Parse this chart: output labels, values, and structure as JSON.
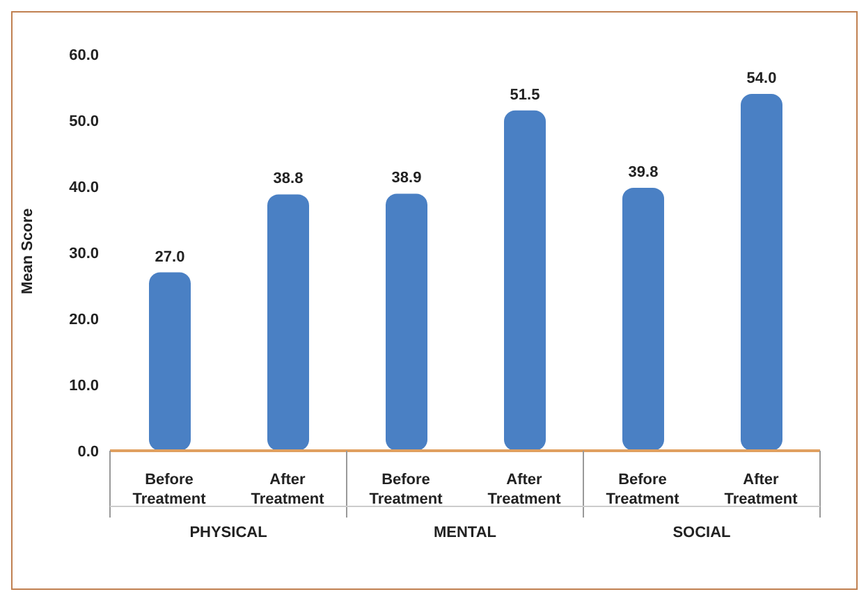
{
  "chart_data": {
    "type": "bar",
    "ylabel": "Mean Score",
    "categories": [
      "Before Treatment",
      "After Treatment",
      "Before Treatment",
      "After Treatment",
      "Before Treatment",
      "After Treatment"
    ],
    "values": [
      27.0,
      38.8,
      38.9,
      51.5,
      39.8,
      54.0
    ],
    "color": "#4a80c4",
    "ylim": [
      0,
      60
    ],
    "yticks": [
      {
        "value": 0,
        "label": "0.0"
      },
      {
        "value": 10,
        "label": "10.0"
      },
      {
        "value": 20,
        "label": "20.0"
      },
      {
        "value": 30,
        "label": "30.0"
      },
      {
        "value": 40,
        "label": "40.0"
      },
      {
        "value": 50,
        "label": "50.0"
      },
      {
        "value": 60,
        "label": "60.0"
      }
    ],
    "data_labels": true,
    "value_labels": [
      "27.0",
      "38.8",
      "38.9",
      "51.5",
      "39.8",
      "54.0"
    ],
    "annotations": [
      "PHYSICAL",
      "MENTAL",
      "SOCIAL"
    ],
    "grid": false
  }
}
